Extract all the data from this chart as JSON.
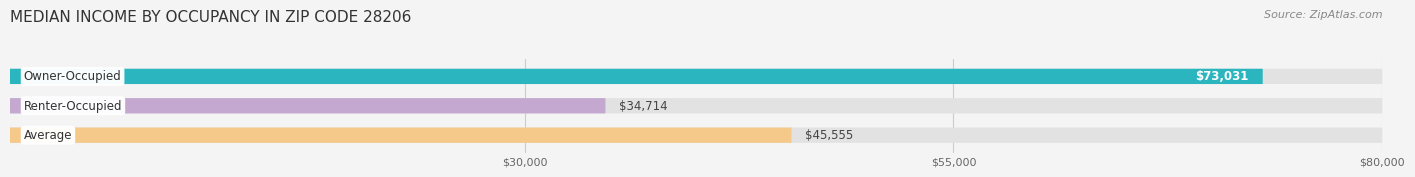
{
  "title": "MEDIAN INCOME BY OCCUPANCY IN ZIP CODE 28206",
  "source": "Source: ZipAtlas.com",
  "categories": [
    "Owner-Occupied",
    "Renter-Occupied",
    "Average"
  ],
  "values": [
    73031,
    34714,
    45555
  ],
  "bar_colors": [
    "#2BB5BF",
    "#C4A8D0",
    "#F5C98A"
  ],
  "bar_labels": [
    "$73,031",
    "$34,714",
    "$45,555"
  ],
  "label_inside": [
    true,
    false,
    false
  ],
  "xlim": [
    0,
    80000
  ],
  "xticks": [
    30000,
    55000,
    80000
  ],
  "xtick_labels": [
    "$30,000",
    "$55,000",
    "$80,000"
  ],
  "background_color": "#f4f4f4",
  "bar_bg_color": "#e2e2e2",
  "title_fontsize": 11,
  "source_fontsize": 8,
  "bar_label_fontsize": 8.5,
  "category_fontsize": 8.5
}
